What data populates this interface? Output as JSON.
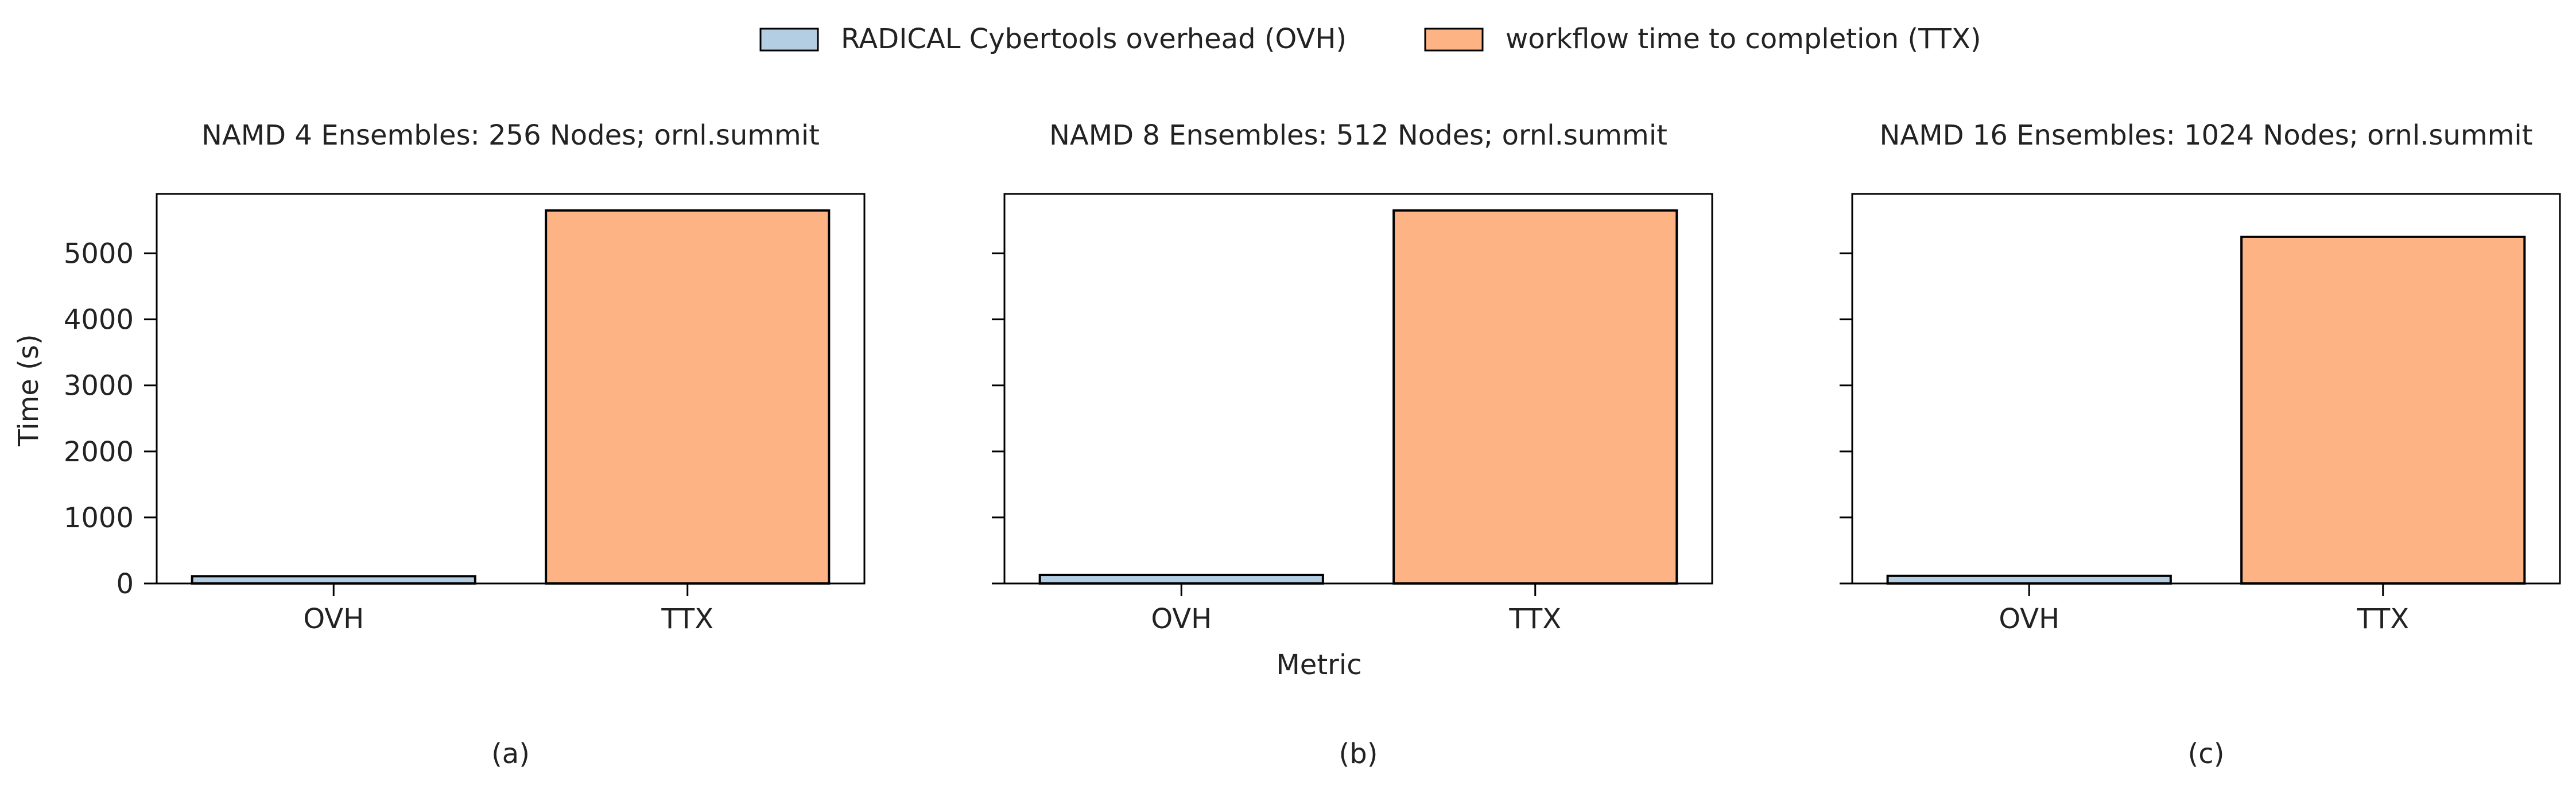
{
  "legend": {
    "items": [
      {
        "label": "RADICAL Cybertools overhead (OVH)",
        "color": "#b3cde3"
      },
      {
        "label": "workflow time to completion (TTX)",
        "color": "#feb384"
      }
    ],
    "placement": "top-center"
  },
  "shared_axes": {
    "ylabel": "Time (s)",
    "xlabel": "Metric",
    "ylim": [
      0,
      5900
    ],
    "yticks": [
      0,
      1000,
      2000,
      3000,
      4000,
      5000
    ],
    "grid": false
  },
  "chart_data": [
    {
      "type": "bar",
      "title": "NAMD 4 Ensembles: 256 Nodes; ornl.summit",
      "caption": "(a)",
      "categories": [
        "OVH",
        "TTX"
      ],
      "values": [
        110,
        5650
      ],
      "colors": [
        "#b3cde3",
        "#feb384"
      ],
      "xlabel": "",
      "ylabel": "Time (s)",
      "ylim": [
        0,
        5900
      ]
    },
    {
      "type": "bar",
      "title": "NAMD 8 Ensembles: 512 Nodes; ornl.summit",
      "caption": "(b)",
      "categories": [
        "OVH",
        "TTX"
      ],
      "values": [
        130,
        5650
      ],
      "colors": [
        "#b3cde3",
        "#feb384"
      ],
      "xlabel": "Metric",
      "ylabel": "",
      "ylim": [
        0,
        5900
      ]
    },
    {
      "type": "bar",
      "title": "NAMD 16 Ensembles: 1024 Nodes; ornl.summit",
      "caption": "(c)",
      "categories": [
        "OVH",
        "TTX"
      ],
      "values": [
        115,
        5250
      ],
      "colors": [
        "#b3cde3",
        "#feb384"
      ],
      "xlabel": "",
      "ylabel": "",
      "ylim": [
        0,
        5900
      ]
    }
  ]
}
